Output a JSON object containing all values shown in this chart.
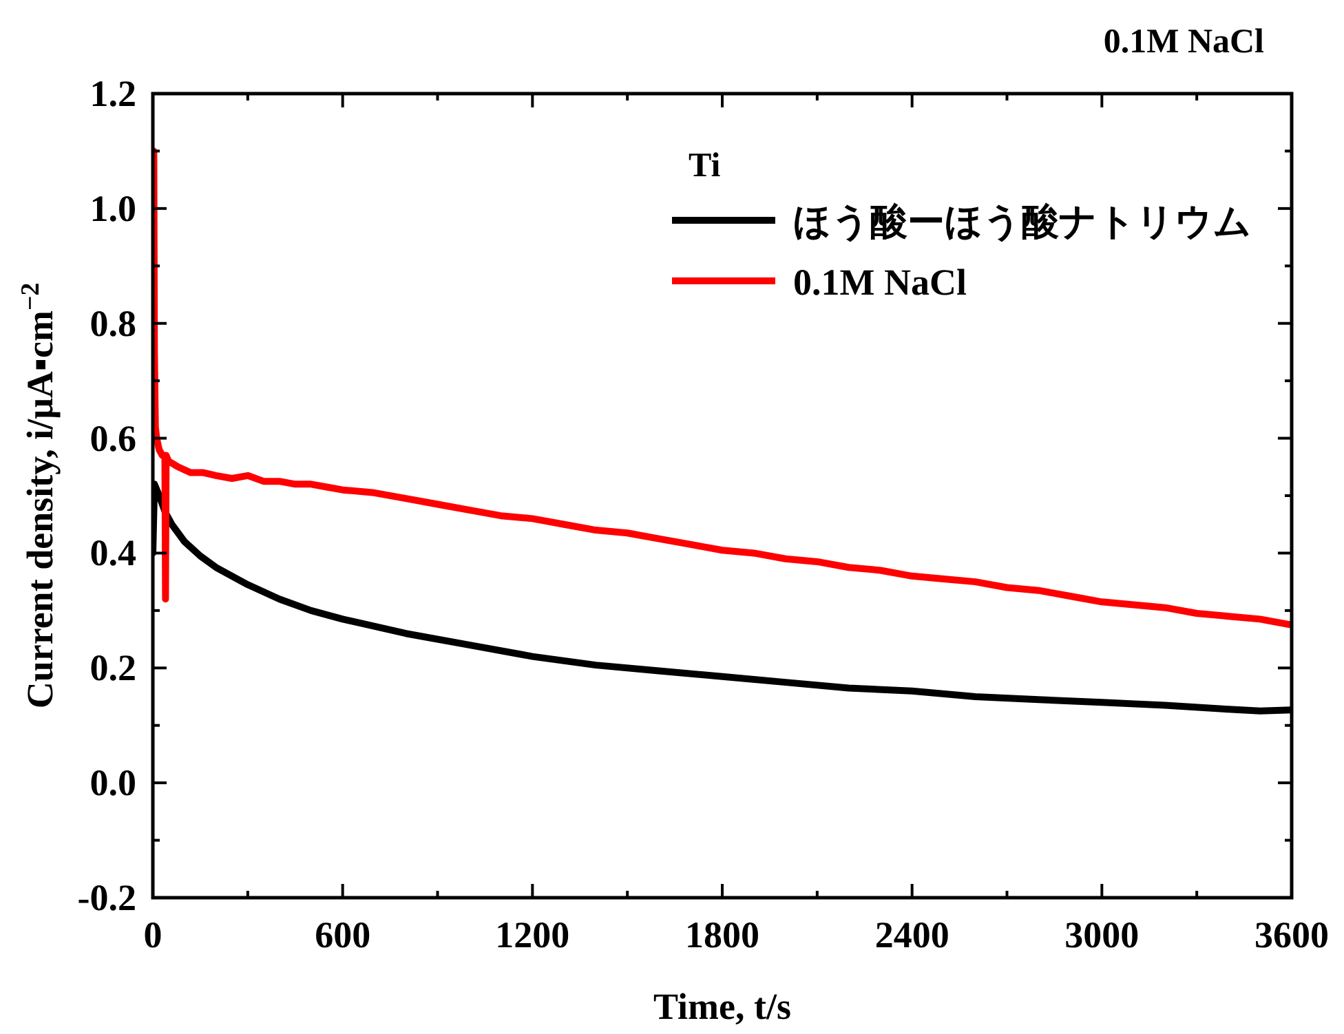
{
  "chart_data": {
    "type": "line",
    "title": "0.1M NaCl",
    "legend_title": "Ti",
    "xlabel": "Time, t/s",
    "ylabel": "Current density, i/μA▪cm$^{−2}$",
    "xlim": [
      0,
      3600
    ],
    "xticks": [
      0,
      600,
      1200,
      1800,
      2400,
      3000,
      3600
    ],
    "ylim": [
      -0.2,
      1.2
    ],
    "yticks": [
      {
        "value": -0.2,
        "label": "-0.2"
      },
      {
        "value": 0.0,
        "label": "0.0"
      },
      {
        "value": 0.2,
        "label": "0.2"
      },
      {
        "value": 0.4,
        "label": "0.4"
      },
      {
        "value": 0.6,
        "label": "0.6"
      },
      {
        "value": 0.8,
        "label": "0.8"
      },
      {
        "value": 1.0,
        "label": "1.0"
      },
      {
        "value": 1.2,
        "label": "1.2"
      }
    ],
    "grid": false,
    "legend": "top right",
    "marker": "none",
    "line_style": "solid",
    "series": [
      {
        "name": "ほう酸ーほう酸ナトリウム",
        "color": "#000000",
        "x": [
          0,
          5,
          20,
          40,
          60,
          100,
          150,
          200,
          300,
          400,
          500,
          600,
          800,
          1000,
          1200,
          1400,
          1600,
          1800,
          2000,
          2200,
          2400,
          2600,
          2800,
          3000,
          3200,
          3400,
          3500,
          3600
        ],
        "values": [
          0.4,
          0.52,
          0.5,
          0.47,
          0.45,
          0.42,
          0.395,
          0.375,
          0.345,
          0.32,
          0.3,
          0.285,
          0.26,
          0.24,
          0.22,
          0.205,
          0.195,
          0.185,
          0.175,
          0.165,
          0.16,
          0.15,
          0.145,
          0.14,
          0.135,
          0.128,
          0.125,
          0.127
        ]
      },
      {
        "name": "0.1M NaCl",
        "color": "#ff0000",
        "x": [
          0,
          3,
          5,
          8,
          12,
          20,
          30,
          38,
          40,
          42,
          50,
          80,
          120,
          160,
          200,
          250,
          300,
          350,
          400,
          450,
          500,
          550,
          600,
          700,
          800,
          900,
          1000,
          1100,
          1200,
          1300,
          1400,
          1500,
          1600,
          1700,
          1800,
          1900,
          2000,
          2100,
          2200,
          2300,
          2400,
          2500,
          2600,
          2700,
          2800,
          2900,
          3000,
          3100,
          3200,
          3300,
          3400,
          3500,
          3600
        ],
        "values": [
          0.62,
          1.1,
          0.75,
          0.62,
          0.6,
          0.58,
          0.57,
          0.57,
          0.32,
          0.57,
          0.56,
          0.55,
          0.54,
          0.54,
          0.535,
          0.53,
          0.535,
          0.525,
          0.525,
          0.52,
          0.52,
          0.515,
          0.51,
          0.505,
          0.495,
          0.485,
          0.475,
          0.465,
          0.46,
          0.45,
          0.44,
          0.435,
          0.425,
          0.415,
          0.405,
          0.4,
          0.39,
          0.385,
          0.375,
          0.37,
          0.36,
          0.355,
          0.35,
          0.34,
          0.335,
          0.325,
          0.315,
          0.31,
          0.305,
          0.295,
          0.29,
          0.285,
          0.275
        ]
      }
    ]
  }
}
